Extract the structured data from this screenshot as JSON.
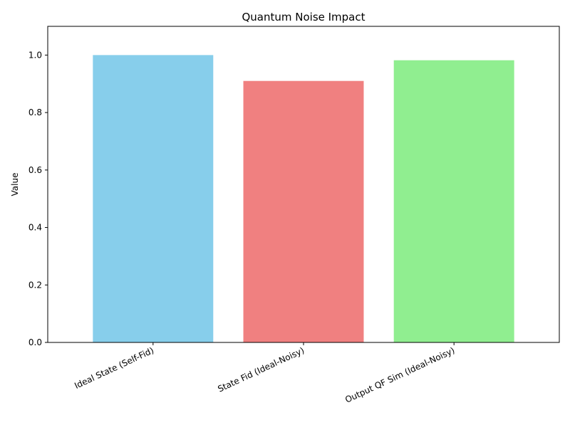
{
  "chart_data": {
    "type": "bar",
    "title": "Quantum Noise Impact",
    "xlabel": "",
    "ylabel": "Value",
    "categories": [
      "Ideal State (Self-Fid)",
      "State Fid (Ideal-Noisy)",
      "Output QF Sim (Ideal-Noisy)"
    ],
    "values": [
      1.0,
      0.91,
      0.982
    ],
    "colors": [
      "#87ceeb",
      "#f08080",
      "#90ee90"
    ],
    "ylim": [
      0,
      1.1
    ],
    "yticks": [
      0.0,
      0.2,
      0.4,
      0.6,
      0.8,
      1.0
    ],
    "ytick_labels": [
      "0.0",
      "0.2",
      "0.4",
      "0.6",
      "0.8",
      "1.0"
    ],
    "grid": false,
    "legend": "none"
  }
}
